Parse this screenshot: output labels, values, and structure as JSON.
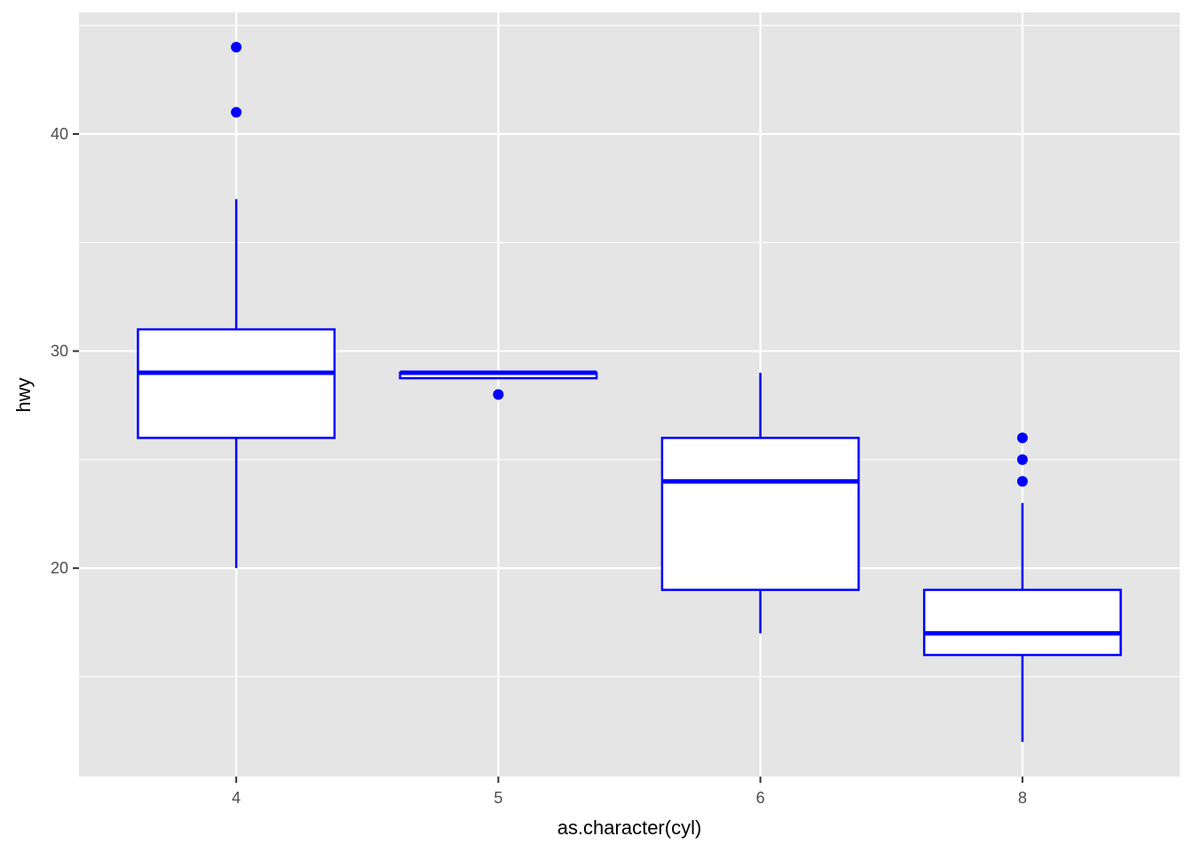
{
  "chart_data": {
    "type": "boxplot",
    "xlabel": "as.character(cyl)",
    "ylabel": "hwy",
    "categories": [
      "4",
      "5",
      "6",
      "8"
    ],
    "ylim": [
      10.4,
      45.6
    ],
    "y_ticks": [
      20,
      30,
      40
    ],
    "y_minor_ticks": [
      15,
      25,
      35,
      45
    ],
    "grid": true,
    "color": "#0000ff",
    "panel_background": "#e5e5e5",
    "boxes": [
      {
        "category": "4",
        "whisker_low": 20,
        "q1": 26,
        "median": 29,
        "q3": 31,
        "whisker_high": 37,
        "outliers": [
          41,
          44
        ]
      },
      {
        "category": "5",
        "whisker_low": 28.75,
        "q1": 28.75,
        "median": 29,
        "q3": 29,
        "whisker_high": 29,
        "outliers": [
          28
        ]
      },
      {
        "category": "6",
        "whisker_low": 17,
        "q1": 19,
        "median": 24,
        "q3": 26,
        "whisker_high": 29,
        "outliers": []
      },
      {
        "category": "8",
        "whisker_low": 12,
        "q1": 16,
        "median": 17,
        "q3": 19,
        "whisker_high": 23,
        "outliers": [
          24,
          25,
          26
        ]
      }
    ]
  }
}
